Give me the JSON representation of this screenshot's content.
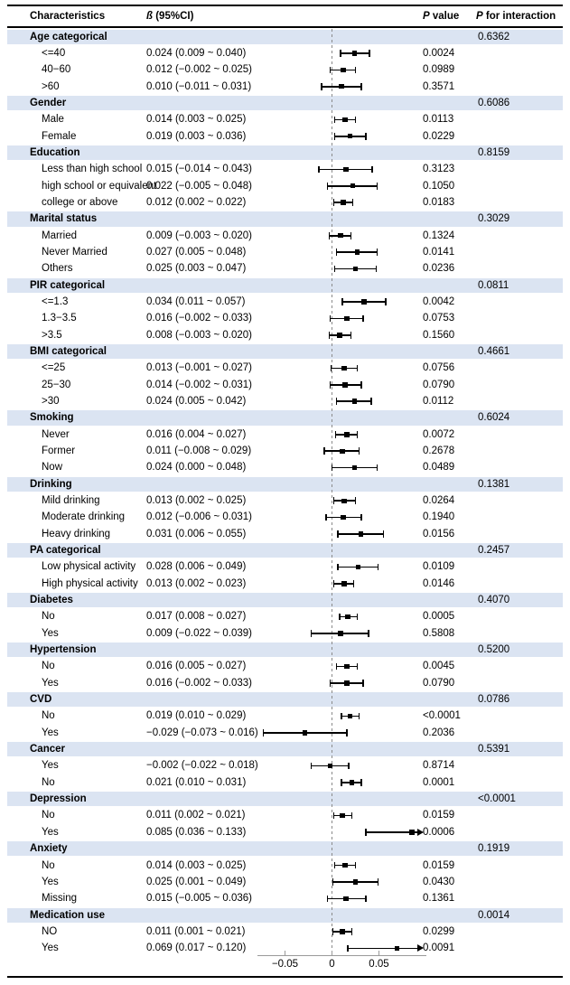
{
  "header": {
    "characteristics": "Characteristics",
    "beta_symbol": "ß",
    "beta_rest": " (95%CI)",
    "p_symbol": "P",
    "p_value_rest": " value",
    "p_interaction_rest": " for interaction"
  },
  "colors": {
    "band": "#dbe4f2",
    "marker": "#000000",
    "axis": "#9a9a9a",
    "dashed_reference": "#8a8a8a",
    "rule": "#000000",
    "text": "#000000"
  },
  "chart_data": {
    "type": "forest",
    "title": "",
    "xlabel": "",
    "reference_value": 0,
    "x_axis": {
      "ticks": [
        {
          "value": -0.05,
          "label": "−0.05"
        },
        {
          "value": 0,
          "label": "0"
        },
        {
          "value": 0.05,
          "label": "0.05"
        }
      ],
      "display_range": [
        -0.079,
        0.1
      ],
      "clip_note": "CIs extending beyond right edge drawn as arrows"
    },
    "sections": [
      {
        "label": "Age categorical",
        "p_interaction": "0.6362",
        "rows": [
          {
            "label": "<=40",
            "beta_text": "0.024 (0.009 ~ 0.040)",
            "est": 0.024,
            "lo": 0.009,
            "hi": 0.04,
            "p": "0.0024"
          },
          {
            "label": "40−60",
            "beta_text": "0.012 (−0.002 ~ 0.025)",
            "est": 0.012,
            "lo": -0.002,
            "hi": 0.025,
            "p": "0.0989"
          },
          {
            "label": ">60",
            "beta_text": "0.010 (−0.011 ~ 0.031)",
            "est": 0.01,
            "lo": -0.011,
            "hi": 0.031,
            "p": "0.3571"
          }
        ]
      },
      {
        "label": "Gender",
        "p_interaction": "0.6086",
        "rows": [
          {
            "label": "Male",
            "beta_text": "0.014 (0.003 ~ 0.025)",
            "est": 0.014,
            "lo": 0.003,
            "hi": 0.025,
            "p": "0.0113"
          },
          {
            "label": "Female",
            "beta_text": "0.019 (0.003 ~ 0.036)",
            "est": 0.019,
            "lo": 0.003,
            "hi": 0.036,
            "p": "0.0229"
          }
        ]
      },
      {
        "label": "Education",
        "p_interaction": "0.8159",
        "rows": [
          {
            "label": "Less than high school",
            "beta_text": "0.015 (−0.014 ~ 0.043)",
            "est": 0.015,
            "lo": -0.014,
            "hi": 0.043,
            "p": "0.3123"
          },
          {
            "label": "high school or equivalent",
            "beta_text": "0.022 (−0.005 ~ 0.048)",
            "est": 0.022,
            "lo": -0.005,
            "hi": 0.048,
            "p": "0.1050"
          },
          {
            "label": "college or above",
            "beta_text": "0.012 (0.002 ~ 0.022)",
            "est": 0.012,
            "lo": 0.002,
            "hi": 0.022,
            "p": "0.0183"
          }
        ]
      },
      {
        "label": "Marital status",
        "p_interaction": "0.3029",
        "rows": [
          {
            "label": "Married",
            "beta_text": "0.009 (−0.003 ~ 0.020)",
            "est": 0.009,
            "lo": -0.003,
            "hi": 0.02,
            "p": "0.1324"
          },
          {
            "label": "Never Married",
            "beta_text": "0.027 (0.005 ~ 0.048)",
            "est": 0.027,
            "lo": 0.005,
            "hi": 0.048,
            "p": "0.0141"
          },
          {
            "label": "Others",
            "beta_text": "0.025 (0.003 ~ 0.047)",
            "est": 0.025,
            "lo": 0.003,
            "hi": 0.047,
            "p": "0.0236"
          }
        ]
      },
      {
        "label": "PIR categorical",
        "p_interaction": "0.0811",
        "rows": [
          {
            "label": "<=1.3",
            "beta_text": "0.034 (0.011 ~ 0.057)",
            "est": 0.034,
            "lo": 0.011,
            "hi": 0.057,
            "p": "0.0042"
          },
          {
            "label": "1.3−3.5",
            "beta_text": "0.016 (−0.002 ~ 0.033)",
            "est": 0.016,
            "lo": -0.002,
            "hi": 0.033,
            "p": "0.0753"
          },
          {
            "label": ">3.5",
            "beta_text": "0.008 (−0.003 ~ 0.020)",
            "est": 0.008,
            "lo": -0.003,
            "hi": 0.02,
            "p": "0.1560"
          }
        ]
      },
      {
        "label": "BMI categorical",
        "p_interaction": "0.4661",
        "rows": [
          {
            "label": "<=25",
            "beta_text": "0.013 (−0.001 ~ 0.027)",
            "est": 0.013,
            "lo": -0.001,
            "hi": 0.027,
            "p": "0.0756"
          },
          {
            "label": "25−30",
            "beta_text": "0.014 (−0.002 ~ 0.031)",
            "est": 0.014,
            "lo": -0.002,
            "hi": 0.031,
            "p": "0.0790"
          },
          {
            "label": ">30",
            "beta_text": "0.024 (0.005 ~ 0.042)",
            "est": 0.024,
            "lo": 0.005,
            "hi": 0.042,
            "p": "0.0112"
          }
        ]
      },
      {
        "label": "Smoking",
        "p_interaction": "0.6024",
        "rows": [
          {
            "label": "Never",
            "beta_text": "0.016 (0.004 ~ 0.027)",
            "est": 0.016,
            "lo": 0.004,
            "hi": 0.027,
            "p": "0.0072"
          },
          {
            "label": "Former",
            "beta_text": "0.011 (−0.008 ~ 0.029)",
            "est": 0.011,
            "lo": -0.008,
            "hi": 0.029,
            "p": "0.2678"
          },
          {
            "label": "Now",
            "beta_text": "0.024 (0.000 ~ 0.048)",
            "est": 0.024,
            "lo": 0.0,
            "hi": 0.048,
            "p": "0.0489"
          }
        ]
      },
      {
        "label": "Drinking",
        "p_interaction": "0.1381",
        "rows": [
          {
            "label": "Mild drinking",
            "beta_text": "0.013 (0.002 ~ 0.025)",
            "est": 0.013,
            "lo": 0.002,
            "hi": 0.025,
            "p": "0.0264"
          },
          {
            "label": "Moderate drinking",
            "beta_text": "0.012 (−0.006 ~ 0.031)",
            "est": 0.012,
            "lo": -0.006,
            "hi": 0.031,
            "p": "0.1940"
          },
          {
            "label": "Heavy drinking",
            "beta_text": "0.031 (0.006 ~ 0.055)",
            "est": 0.031,
            "lo": 0.006,
            "hi": 0.055,
            "p": "0.0156"
          }
        ]
      },
      {
        "label": "PA categorical",
        "p_interaction": "0.2457",
        "rows": [
          {
            "label": "Low physical activity",
            "beta_text": "0.028 (0.006 ~ 0.049)",
            "est": 0.028,
            "lo": 0.006,
            "hi": 0.049,
            "p": "0.0109"
          },
          {
            "label": "High physical activity",
            "beta_text": "0.013 (0.002 ~ 0.023)",
            "est": 0.013,
            "lo": 0.002,
            "hi": 0.023,
            "p": "0.0146"
          }
        ]
      },
      {
        "label": "Diabetes",
        "p_interaction": "0.4070",
        "rows": [
          {
            "label": "No",
            "beta_text": "0.017 (0.008 ~ 0.027)",
            "est": 0.017,
            "lo": 0.008,
            "hi": 0.027,
            "p": "0.0005"
          },
          {
            "label": "Yes",
            "beta_text": "0.009 (−0.022 ~ 0.039)",
            "est": 0.009,
            "lo": -0.022,
            "hi": 0.039,
            "p": "0.5808"
          }
        ]
      },
      {
        "label": "Hypertension",
        "p_interaction": "0.5200",
        "rows": [
          {
            "label": "No",
            "beta_text": "0.016 (0.005 ~ 0.027)",
            "est": 0.016,
            "lo": 0.005,
            "hi": 0.027,
            "p": "0.0045"
          },
          {
            "label": "Yes",
            "beta_text": "0.016 (−0.002 ~ 0.033)",
            "est": 0.016,
            "lo": -0.002,
            "hi": 0.033,
            "p": "0.0790"
          }
        ]
      },
      {
        "label": "CVD",
        "p_interaction": "0.0786",
        "rows": [
          {
            "label": "No",
            "beta_text": "0.019 (0.010 ~ 0.029)",
            "est": 0.019,
            "lo": 0.01,
            "hi": 0.029,
            "p": "<0.0001"
          },
          {
            "label": "Yes",
            "beta_text": "−0.029 (−0.073 ~ 0.016)",
            "est": -0.029,
            "lo": -0.073,
            "hi": 0.016,
            "p": "0.2036"
          }
        ]
      },
      {
        "label": "Cancer",
        "p_interaction": "0.5391",
        "rows": [
          {
            "label": "Yes",
            "beta_text": "−0.002 (−0.022 ~ 0.018)",
            "est": -0.002,
            "lo": -0.022,
            "hi": 0.018,
            "p": "0.8714"
          },
          {
            "label": "No",
            "beta_text": "0.021 (0.010 ~ 0.031)",
            "est": 0.021,
            "lo": 0.01,
            "hi": 0.031,
            "p": "0.0001"
          }
        ]
      },
      {
        "label": "Depression",
        "p_interaction": "<0.0001",
        "rows": [
          {
            "label": "No",
            "beta_text": "0.011 (0.002 ~ 0.021)",
            "est": 0.011,
            "lo": 0.002,
            "hi": 0.021,
            "p": "0.0159"
          },
          {
            "label": "Yes",
            "beta_text": "0.085 (0.036 ~ 0.133)",
            "est": 0.085,
            "lo": 0.036,
            "hi": 0.133,
            "p": "0.0006"
          }
        ]
      },
      {
        "label": "Anxiety",
        "p_interaction": "0.1919",
        "rows": [
          {
            "label": "No",
            "beta_text": "0.014 (0.003 ~ 0.025)",
            "est": 0.014,
            "lo": 0.003,
            "hi": 0.025,
            "p": "0.0159"
          },
          {
            "label": "Yes",
            "beta_text": "0.025 (0.001 ~ 0.049)",
            "est": 0.025,
            "lo": 0.001,
            "hi": 0.049,
            "p": "0.0430"
          },
          {
            "label": "Missing",
            "beta_text": "0.015 (−0.005 ~ 0.036)",
            "est": 0.015,
            "lo": -0.005,
            "hi": 0.036,
            "p": "0.1361"
          }
        ]
      },
      {
        "label": "Medication use",
        "p_interaction": "0.0014",
        "rows": [
          {
            "label": "NO",
            "beta_text": "0.011 (0.001 ~ 0.021)",
            "est": 0.011,
            "lo": 0.001,
            "hi": 0.021,
            "p": "0.0299"
          },
          {
            "label": "Yes",
            "beta_text": "0.069 (0.017 ~ 0.120)",
            "est": 0.069,
            "lo": 0.017,
            "hi": 0.12,
            "p": "0.0091"
          }
        ]
      }
    ]
  }
}
